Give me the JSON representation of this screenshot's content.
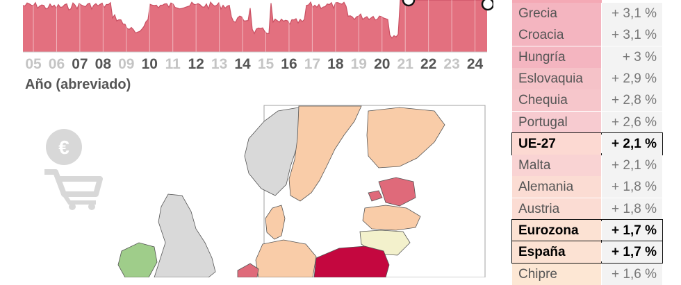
{
  "chart_data": {
    "type": "area",
    "xlabel": "Año (abreviado)",
    "x_ticks": [
      "05",
      "06",
      "07",
      "08",
      "09",
      "10",
      "11",
      "12",
      "13",
      "14",
      "15",
      "16",
      "17",
      "18",
      "19",
      "20",
      "21",
      "22",
      "23",
      "24"
    ],
    "x_ticks_highlighted": [
      "07",
      "08",
      "10",
      "12",
      "14",
      "16",
      "18",
      "20",
      "22",
      "24"
    ],
    "fill_color": "#e3707f",
    "fill_light": "#efbdc4"
  },
  "table": {
    "rows": [
      {
        "country": "Grecia",
        "value": "+ 3,1 %",
        "color": "#f4b5c0",
        "highlight": false
      },
      {
        "country": "Croacia",
        "value": "+ 3,1 %",
        "color": "#f4b5c0",
        "highlight": false
      },
      {
        "country": "Hungría",
        "value": "+ 3 %",
        "color": "#f4b5c0",
        "highlight": false
      },
      {
        "country": "Eslovaquia",
        "value": "+ 2,9 %",
        "color": "#f5c2c8",
        "highlight": false
      },
      {
        "country": "Chequia",
        "value": "+ 2,8 %",
        "color": "#f6c6cb",
        "highlight": false
      },
      {
        "country": "Portugal",
        "value": "+ 2,6 %",
        "color": "#f7cbd0",
        "highlight": false
      },
      {
        "country": "UE-27",
        "value": "+ 2,1 %",
        "color": "#fcd9d2",
        "highlight": true
      },
      {
        "country": "Malta",
        "value": "+ 2,1 %",
        "color": "#f9d3d3",
        "highlight": false
      },
      {
        "country": "Alemania",
        "value": "+ 1,8 %",
        "color": "#fbdcd3",
        "highlight": false
      },
      {
        "country": "Austria",
        "value": "+ 1,8 %",
        "color": "#fbdcd3",
        "highlight": false
      },
      {
        "country": "Eurozona",
        "value": "+ 1,7 %",
        "color": "#fce2d3",
        "highlight": true
      },
      {
        "country": "España",
        "value": "+ 1,7 %",
        "color": "#fce2d3",
        "highlight": true
      },
      {
        "country": "Chipre",
        "value": "+ 1,6 %",
        "color": "#fde7d4",
        "highlight": false
      }
    ]
  },
  "map_colors": {
    "land_grey": "#d9d9d9",
    "low": "#9fcd8a",
    "light_orange": "#f9cca8",
    "pale_yellow": "#f3f1cc",
    "mid_red": "#df6a7a",
    "dark_red": "#c4073f"
  }
}
